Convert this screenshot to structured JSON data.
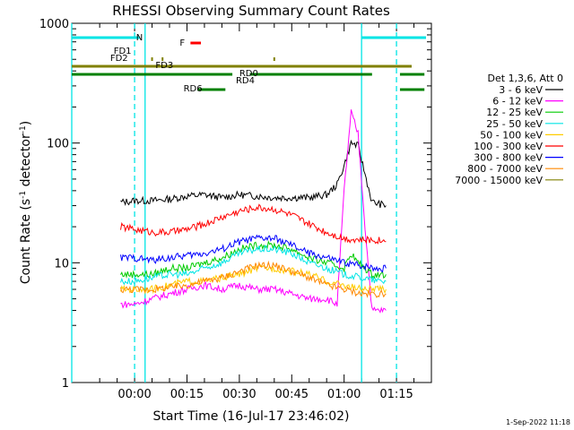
{
  "chart_data": {
    "type": "line",
    "title": "RHESSI Observing Summary Count Rates",
    "xlabel": "Start Time (16-Jul-17 23:46:02)",
    "ylabel_prefix": "Count Rate (s",
    "ylabel_sup1": "-1",
    "ylabel_mid": " detector",
    "ylabel_sup2": "-1",
    "ylabel_suffix": ")",
    "yscale": "log",
    "ylim": [
      1,
      1000
    ],
    "xlim_minutes": [
      -18,
      85
    ],
    "y_ticks": [
      {
        "value": 1,
        "label": "1"
      },
      {
        "value": 10,
        "label": "10"
      },
      {
        "value": 100,
        "label": "100"
      },
      {
        "value": 1000,
        "label": "1000"
      }
    ],
    "x_ticks": [
      {
        "minute": 0,
        "label": "00:00"
      },
      {
        "minute": 15,
        "label": "00:15"
      },
      {
        "minute": 30,
        "label": "00:30"
      },
      {
        "minute": 45,
        "label": "00:45"
      },
      {
        "minute": 60,
        "label": "01:00"
      },
      {
        "minute": 75,
        "label": "01:15"
      }
    ],
    "legend_title": "Det 1,3,6, Att 0",
    "legend_position": "right",
    "series": [
      {
        "name": "3 - 6 keV",
        "color": "#000000",
        "x": [
          -4,
          0,
          5,
          10,
          15,
          20,
          25,
          30,
          35,
          40,
          45,
          50,
          55,
          58,
          60,
          62,
          64,
          66,
          68,
          70,
          72
        ],
        "y": [
          32,
          33,
          33,
          34,
          36,
          37,
          35,
          37,
          36,
          35,
          35,
          35,
          37,
          45,
          65,
          100,
          95,
          55,
          32,
          31,
          30
        ]
      },
      {
        "name": "6 - 12 keV",
        "color": "#ff00ff",
        "x": [
          -4,
          0,
          5,
          10,
          15,
          20,
          25,
          30,
          35,
          40,
          45,
          50,
          55,
          58,
          60,
          62,
          64,
          66,
          68,
          70,
          72
        ],
        "y": [
          4.5,
          4.5,
          5,
          5.5,
          6,
          6.5,
          6,
          6.5,
          6,
          6,
          5.5,
          5,
          5,
          4.5,
          40,
          180,
          120,
          20,
          4,
          4,
          4
        ]
      },
      {
        "name": "12 - 25 keV",
        "color": "#00cc00",
        "x": [
          -4,
          0,
          5,
          10,
          15,
          20,
          25,
          30,
          35,
          40,
          45,
          50,
          55,
          60,
          62,
          64,
          66,
          68,
          70,
          72
        ],
        "y": [
          8,
          8,
          8,
          9,
          9,
          10,
          11,
          13,
          14,
          14,
          13,
          11,
          10,
          9,
          12,
          10,
          9,
          8,
          8,
          8
        ]
      },
      {
        "name": "25 - 50 keV",
        "color": "#00e5e5",
        "x": [
          -4,
          0,
          5,
          10,
          15,
          20,
          25,
          30,
          35,
          40,
          45,
          50,
          55,
          60,
          65,
          70,
          72
        ],
        "y": [
          7,
          7,
          7.5,
          8,
          8,
          9,
          10,
          12,
          13,
          13,
          12,
          10,
          9,
          8,
          7.5,
          7,
          7
        ]
      },
      {
        "name": "50 - 100 keV",
        "color": "#ffcc00",
        "x": [
          -4,
          0,
          5,
          10,
          15,
          20,
          25,
          30,
          35,
          40,
          45,
          50,
          55,
          60,
          65,
          70,
          72
        ],
        "y": [
          6,
          6,
          6,
          6.5,
          7,
          7,
          7.5,
          8,
          9,
          9,
          8.5,
          8,
          7,
          6.5,
          6,
          6,
          6
        ]
      },
      {
        "name": "100 - 300 keV",
        "color": "#ff0000",
        "x": [
          -4,
          0,
          5,
          10,
          15,
          20,
          25,
          30,
          35,
          40,
          45,
          50,
          55,
          60,
          65,
          70,
          72
        ],
        "y": [
          20,
          19,
          18,
          18,
          19,
          21,
          24,
          27,
          29,
          28,
          25,
          21,
          18,
          16,
          15.5,
          15.5,
          15
        ]
      },
      {
        "name": "300 - 800 keV",
        "color": "#0000ff",
        "x": [
          -4,
          0,
          5,
          10,
          15,
          20,
          25,
          30,
          35,
          40,
          45,
          50,
          55,
          60,
          65,
          70,
          72
        ],
        "y": [
          11,
          11,
          10.5,
          11,
          11.5,
          12,
          13,
          15,
          16,
          16,
          14,
          12,
          11,
          10,
          9.5,
          9,
          9
        ]
      },
      {
        "name": "800 - 7000 keV",
        "color": "#ff8800",
        "x": [
          -4,
          0,
          5,
          10,
          15,
          20,
          25,
          30,
          35,
          40,
          45,
          50,
          55,
          60,
          65,
          70,
          72
        ],
        "y": [
          6,
          6,
          6,
          6.2,
          6.5,
          7,
          7.5,
          8.5,
          9.5,
          9.5,
          8.5,
          7.5,
          6.5,
          6,
          5.5,
          5.5,
          5.5
        ]
      },
      {
        "name": "7000 - 15000 keV",
        "color": "#808000",
        "x": [],
        "y": []
      }
    ],
    "annotations": {
      "night_label": "N",
      "night_intervals": [
        [
          -18,
          3
        ],
        [
          65,
          85
        ]
      ],
      "night_boundaries_minutes": [
        -18,
        0,
        3,
        65,
        75
      ],
      "flare_label": "F",
      "flare_interval": [
        16,
        19
      ],
      "fd1_label": "FD1",
      "fd2_label": "FD2",
      "fd3_label": "FD3",
      "rd0_label": "RD0",
      "rd4_label": "RD4",
      "rd6_label": "RD6",
      "datagap_intervals": [
        [
          -18,
          28
        ],
        [
          33,
          68
        ],
        [
          77,
          82
        ]
      ],
      "saa_intervals": [
        [
          28,
          40
        ],
        [
          77,
          82
        ]
      ]
    },
    "footer_stamp": "1-Sep-2022 11:18"
  }
}
